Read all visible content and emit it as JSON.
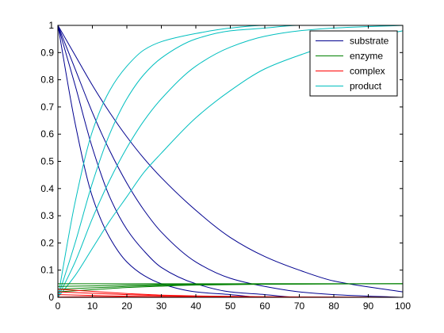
{
  "chart_data": {
    "type": "line",
    "title": "",
    "xlabel": "",
    "ylabel": "",
    "xlim": [
      0,
      100
    ],
    "ylim": [
      0,
      1
    ],
    "xticks": [
      0,
      10,
      20,
      30,
      40,
      50,
      60,
      70,
      80,
      90,
      100
    ],
    "yticks": [
      0,
      0.1,
      0.2,
      0.3,
      0.4,
      0.5,
      0.6,
      0.7,
      0.8,
      0.9,
      1
    ],
    "grid": false,
    "legend_position": "top-right",
    "legend": [
      {
        "label": "substrate",
        "color": "#00008f"
      },
      {
        "label": "enzyme",
        "color": "#008000"
      },
      {
        "label": "complex",
        "color": "#ff0000"
      },
      {
        "label": "product",
        "color": "#00bfbf"
      }
    ],
    "series": [
      {
        "group": "substrate",
        "color": "#00008f",
        "x": [
          0,
          5,
          10,
          15,
          20,
          25,
          30,
          40,
          50,
          60,
          70,
          80,
          100
        ],
        "y": [
          1,
          0.64,
          0.37,
          0.22,
          0.13,
          0.08,
          0.05,
          0.02,
          0.01,
          0,
          0,
          0,
          0
        ]
      },
      {
        "group": "substrate",
        "color": "#00008f",
        "x": [
          0,
          5,
          10,
          15,
          20,
          25,
          30,
          40,
          50,
          60,
          70,
          80,
          100
        ],
        "y": [
          1,
          0.78,
          0.55,
          0.37,
          0.25,
          0.17,
          0.11,
          0.05,
          0.02,
          0.01,
          0,
          0,
          0
        ]
      },
      {
        "group": "substrate",
        "color": "#00008f",
        "x": [
          0,
          5,
          10,
          15,
          20,
          25,
          30,
          40,
          50,
          60,
          70,
          80,
          100
        ],
        "y": [
          1,
          0.84,
          0.68,
          0.54,
          0.42,
          0.32,
          0.24,
          0.13,
          0.07,
          0.04,
          0.02,
          0.01,
          0
        ]
      },
      {
        "group": "substrate",
        "color": "#00008f",
        "x": [
          0,
          5,
          10,
          15,
          20,
          25,
          30,
          40,
          50,
          60,
          70,
          80,
          100
        ],
        "y": [
          1,
          0.89,
          0.78,
          0.68,
          0.59,
          0.51,
          0.44,
          0.32,
          0.22,
          0.15,
          0.1,
          0.06,
          0.02
        ]
      },
      {
        "group": "product",
        "color": "#00bfbf",
        "x": [
          0,
          5,
          10,
          15,
          20,
          25,
          30,
          40,
          50,
          60,
          70,
          80,
          100
        ],
        "y": [
          0,
          0.35,
          0.61,
          0.76,
          0.85,
          0.91,
          0.94,
          0.97,
          0.99,
          1,
          1,
          1,
          1
        ]
      },
      {
        "group": "product",
        "color": "#00bfbf",
        "x": [
          0,
          5,
          10,
          15,
          20,
          25,
          30,
          40,
          50,
          60,
          70,
          80,
          100
        ],
        "y": [
          0,
          0.2,
          0.42,
          0.6,
          0.73,
          0.82,
          0.88,
          0.95,
          0.98,
          0.99,
          1,
          1,
          1
        ]
      },
      {
        "group": "product",
        "color": "#00bfbf",
        "x": [
          0,
          5,
          10,
          15,
          20,
          25,
          30,
          40,
          50,
          60,
          70,
          80,
          100
        ],
        "y": [
          0,
          0.13,
          0.29,
          0.43,
          0.55,
          0.65,
          0.73,
          0.85,
          0.92,
          0.96,
          0.98,
          0.99,
          1
        ]
      },
      {
        "group": "product",
        "color": "#00bfbf",
        "x": [
          0,
          5,
          10,
          15,
          20,
          25,
          30,
          40,
          50,
          60,
          70,
          80,
          100
        ],
        "y": [
          0,
          0.08,
          0.18,
          0.28,
          0.37,
          0.46,
          0.53,
          0.66,
          0.76,
          0.84,
          0.89,
          0.93,
          0.98
        ]
      },
      {
        "group": "enzyme",
        "color": "#008000",
        "x": [
          0,
          10,
          20,
          30,
          40,
          60,
          100
        ],
        "y": [
          0.05,
          0.05,
          0.05,
          0.05,
          0.05,
          0.05,
          0.05
        ]
      },
      {
        "group": "enzyme",
        "color": "#008000",
        "x": [
          0,
          10,
          20,
          30,
          40,
          60,
          100
        ],
        "y": [
          0.04,
          0.042,
          0.045,
          0.047,
          0.049,
          0.05,
          0.05
        ]
      },
      {
        "group": "enzyme",
        "color": "#008000",
        "x": [
          0,
          10,
          20,
          30,
          40,
          60,
          100
        ],
        "y": [
          0.03,
          0.035,
          0.04,
          0.044,
          0.047,
          0.049,
          0.05
        ]
      },
      {
        "group": "enzyme",
        "color": "#008000",
        "x": [
          0,
          10,
          20,
          30,
          40,
          60,
          100
        ],
        "y": [
          0.02,
          0.028,
          0.036,
          0.041,
          0.045,
          0.048,
          0.05
        ]
      },
      {
        "group": "complex",
        "color": "#ff0000",
        "x": [
          0,
          10,
          20,
          30,
          40,
          60,
          100
        ],
        "y": [
          0.001,
          0.002,
          0.001,
          0,
          0,
          0,
          0
        ]
      },
      {
        "group": "complex",
        "color": "#ff0000",
        "x": [
          0,
          10,
          20,
          30,
          40,
          60,
          100
        ],
        "y": [
          0.01,
          0.007,
          0.004,
          0.002,
          0.001,
          0,
          0
        ]
      },
      {
        "group": "complex",
        "color": "#ff0000",
        "x": [
          0,
          10,
          20,
          30,
          40,
          60,
          100
        ],
        "y": [
          0.02,
          0.015,
          0.01,
          0.006,
          0.003,
          0.001,
          0
        ]
      },
      {
        "group": "complex",
        "color": "#ff0000",
        "x": [
          0,
          10,
          20,
          30,
          40,
          60,
          100
        ],
        "y": [
          0.03,
          0.022,
          0.014,
          0.008,
          0.005,
          0.002,
          0
        ]
      }
    ]
  }
}
